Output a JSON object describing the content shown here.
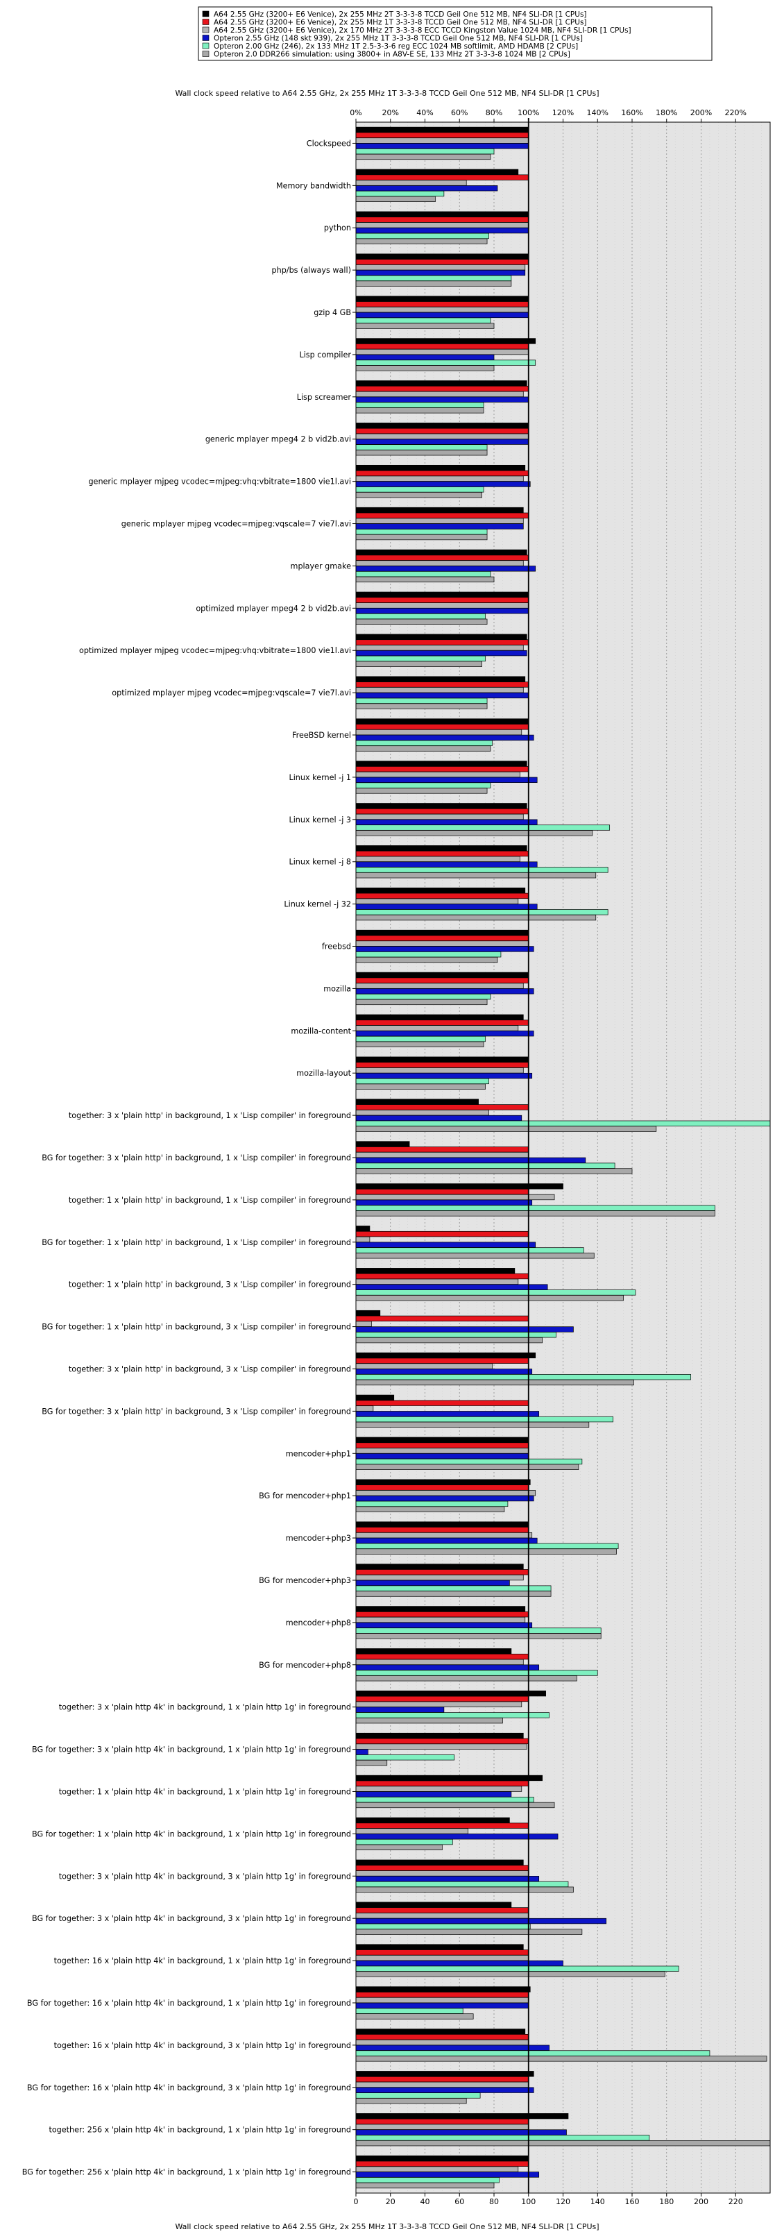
{
  "chart_data": {
    "type": "bar",
    "orientation": "horizontal",
    "title_top": "Wall clock speed relative to A64 2.55 GHz, 2x 255 MHz 1T 3-3-3-8 TCCD Geil One 512 MB, NF4 SLI-DR [1 CPUs]",
    "xlabel_bottom": "Wall clock speed relative to A64 2.55 GHz, 2x 255 MHz 1T 3-3-3-8 TCCD Geil One 512 MB, NF4 SLI-DR [1 CPUs]",
    "xlim": [
      0,
      240
    ],
    "top_tick_labels": [
      "0%",
      "20%",
      "40%",
      "60%",
      "80%",
      "100%",
      "120%",
      "140%",
      "160%",
      "180%",
      "200%",
      "220%"
    ],
    "bottom_tick_labels": [
      "0",
      "20",
      "40",
      "60",
      "80",
      "100",
      "120",
      "140",
      "160",
      "180",
      "200",
      "220"
    ],
    "tick_values": [
      0,
      20,
      40,
      60,
      80,
      100,
      120,
      140,
      160,
      180,
      200,
      220
    ],
    "reference_line": 100,
    "grid": true,
    "legend_placement": "top",
    "series": [
      {
        "name": "A64 2.55 GHz (3200+ E6 Venice), 2x 255 MHz 2T 3-3-3-8 TCCD Geil One 512 MB, NF4 SLI-DR [1 CPUs]",
        "color": "#000000"
      },
      {
        "name": "A64 2.55 GHz (3200+ E6 Venice), 2x 255 MHz 1T 3-3-3-8 TCCD Geil One 512 MB, NF4 SLI-DR [1 CPUs]",
        "color": "#e8141c"
      },
      {
        "name": "A64 2.55 GHz (3200+ E6 Venice), 2x 170 MHz 2T 3-3-3-8 ECC TCCD Kingston Value 1024 MB, NF4 SLI-DR [1 CPUs]",
        "color": "#b4b4b4"
      },
      {
        "name": "Opteron 2.55 GHz (148 skt 939), 2x 255 MHz 1T 3-3-3-8 TCCD Geil One 512 MB, NF4 SLI-DR [1 CPUs]",
        "color": "#0c14c8"
      },
      {
        "name": "Opteron 2.00 GHz (246), 2x 133 MHz 1T 2.5-3-3-6 reg ECC 1024 MB softlimit, AMD HDAMB [2 CPUs]",
        "color": "#7ff0c0"
      },
      {
        "name": "Opteron 2.0 DDR266 simulation: using 3800+ in A8V-E SE, 133 MHz 2T 3-3-3-8 1024 MB [2 CPUs]",
        "color": "#a8a8a8"
      }
    ],
    "categories": [
      "Clockspeed",
      "Memory bandwidth",
      "python",
      "php/bs (always wall)",
      "gzip 4 GB",
      "Lisp compiler",
      "Lisp screamer",
      "generic mplayer mpeg4 2 b vid2b.avi",
      "generic mplayer mjpeg vcodec=mjpeg:vhq:vbitrate=1800 vie1l.avi",
      "generic mplayer mjpeg vcodec=mjpeg:vqscale=7 vie7l.avi",
      "mplayer gmake",
      "optimized mplayer mpeg4 2 b vid2b.avi",
      "optimized mplayer mjpeg vcodec=mjpeg:vhq:vbitrate=1800 vie1l.avi",
      "optimized mplayer mjpeg vcodec=mjpeg:vqscale=7 vie7l.avi",
      "FreeBSD kernel",
      "Linux kernel -j 1",
      "Linux kernel -j 3",
      "Linux kernel -j 8",
      "Linux kernel -j 32",
      "freebsd",
      "mozilla",
      "mozilla-content",
      "mozilla-layout",
      "together: 3 x 'plain http' in background, 1 x 'Lisp compiler' in foreground",
      "BG for together: 3 x 'plain http' in background, 1 x 'Lisp compiler' in foreground",
      "together: 1 x 'plain http' in background, 1 x 'Lisp compiler' in foreground",
      "BG for together: 1 x 'plain http' in background, 1 x 'Lisp compiler' in foreground",
      "together: 1 x 'plain http' in background, 3 x 'Lisp compiler' in foreground",
      "BG for together: 1 x 'plain http' in background, 3 x 'Lisp compiler' in foreground",
      "together: 3 x 'plain http' in background, 3 x 'Lisp compiler' in foreground",
      "BG for together: 3 x 'plain http' in background, 3 x 'Lisp compiler' in foreground",
      "mencoder+php1",
      "BG for mencoder+php1",
      "mencoder+php3",
      "BG for mencoder+php3",
      "mencoder+php8",
      "BG for mencoder+php8",
      "together: 3 x 'plain http 4k' in background, 1 x 'plain http 1g' in foreground",
      "BG for together: 3 x 'plain http 4k' in background, 1 x 'plain http 1g' in foreground",
      "together: 1 x 'plain http 4k' in background, 1 x 'plain http 1g' in foreground",
      "BG for together: 1 x 'plain http 4k' in background, 1 x 'plain http 1g' in foreground",
      "together: 3 x 'plain http 4k' in background, 3 x 'plain http 1g' in foreground",
      "BG for together: 3 x 'plain http 4k' in background, 3 x 'plain http 1g' in foreground",
      "together: 16 x 'plain http 4k' in background, 1 x 'plain http 1g' in foreground",
      "BG for together: 16 x 'plain http 4k' in background, 1 x 'plain http 1g' in foreground",
      "together: 16 x 'plain http 4k' in background, 3 x 'plain http 1g' in foreground",
      "BG for together: 16 x 'plain http 4k' in background, 3 x 'plain http 1g' in foreground",
      "together: 256 x 'plain http 4k' in background, 1 x 'plain http 1g' in foreground",
      "BG for together: 256 x 'plain http 4k' in background, 1 x 'plain http 1g' in foreground"
    ],
    "values": [
      [
        100,
        100,
        100,
        100,
        80,
        78
      ],
      [
        94,
        100,
        64,
        82,
        51,
        46
      ],
      [
        100,
        100,
        100,
        100,
        77,
        76
      ],
      [
        100,
        100,
        98,
        98,
        90,
        90
      ],
      [
        100,
        100,
        100,
        100,
        78,
        80
      ],
      [
        104,
        100,
        100,
        80,
        104,
        80
      ],
      [
        99,
        100,
        97,
        100,
        74,
        74
      ],
      [
        100,
        100,
        100,
        100,
        76,
        76
      ],
      [
        98,
        100,
        97,
        101,
        74,
        73
      ],
      [
        97,
        100,
        97,
        97,
        76,
        76
      ],
      [
        99,
        100,
        97,
        104,
        78,
        80
      ],
      [
        100,
        100,
        100,
        100,
        75,
        76
      ],
      [
        99,
        100,
        97,
        99,
        75,
        73
      ],
      [
        98,
        100,
        97,
        100,
        76,
        76
      ],
      [
        100,
        100,
        96,
        103,
        79,
        78
      ],
      [
        99,
        100,
        95,
        105,
        78,
        76
      ],
      [
        99,
        100,
        97,
        105,
        147,
        137
      ],
      [
        99,
        100,
        95,
        105,
        146,
        139
      ],
      [
        98,
        100,
        94,
        105,
        146,
        139
      ],
      [
        100,
        100,
        100,
        103,
        84,
        82
      ],
      [
        100,
        100,
        97,
        103,
        78,
        76
      ],
      [
        97,
        100,
        94,
        103,
        75,
        74
      ],
      [
        100,
        100,
        97,
        102,
        77,
        75
      ],
      [
        71,
        100,
        77,
        96,
        240,
        174
      ],
      [
        31,
        100,
        100,
        133,
        150,
        160
      ],
      [
        120,
        100,
        115,
        102,
        208,
        208
      ],
      [
        8,
        100,
        8,
        104,
        132,
        138
      ],
      [
        92,
        100,
        94,
        111,
        162,
        155
      ],
      [
        14,
        100,
        9,
        126,
        116,
        108
      ],
      [
        104,
        100,
        79,
        102,
        194,
        161
      ],
      [
        22,
        100,
        10,
        106,
        149,
        135
      ],
      [
        100,
        100,
        100,
        100,
        131,
        129
      ],
      [
        101,
        100,
        104,
        103,
        88,
        86
      ],
      [
        100,
        100,
        102,
        105,
        152,
        151
      ],
      [
        97,
        100,
        97,
        89,
        113,
        113
      ],
      [
        98,
        100,
        98,
        102,
        142,
        142
      ],
      [
        90,
        100,
        97,
        106,
        140,
        128
      ],
      [
        110,
        100,
        96,
        51,
        112,
        85
      ],
      [
        97,
        100,
        99,
        7,
        57,
        18
      ],
      [
        108,
        100,
        96,
        90,
        103,
        115
      ],
      [
        89,
        100,
        65,
        117,
        56,
        50
      ],
      [
        97,
        100,
        100,
        106,
        123,
        126
      ],
      [
        90,
        100,
        100,
        145,
        101,
        131
      ],
      [
        97,
        100,
        100,
        120,
        187,
        179
      ],
      [
        101,
        100,
        100,
        100,
        62,
        68
      ],
      [
        98,
        100,
        100,
        112,
        205,
        238
      ],
      [
        103,
        100,
        100,
        103,
        72,
        64
      ],
      [
        123,
        100,
        100,
        122,
        170,
        240
      ],
      [
        100,
        100,
        94,
        106,
        83,
        80
      ]
    ]
  }
}
